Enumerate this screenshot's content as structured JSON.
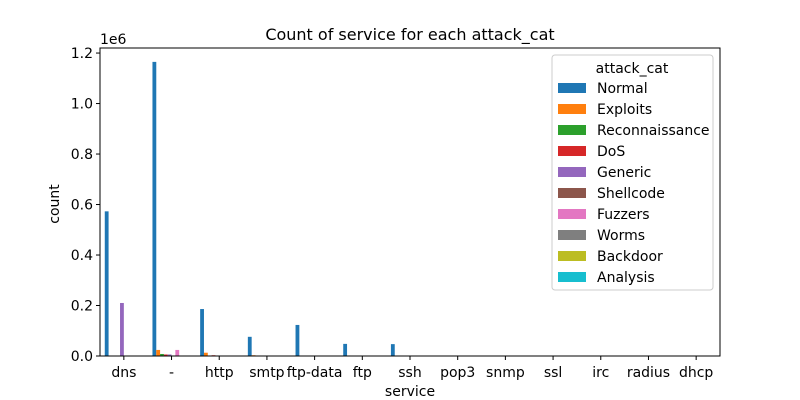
{
  "chart_data": {
    "type": "bar",
    "title": "Count of service for each attack_cat",
    "xlabel": "service",
    "ylabel": "count",
    "y_multiplier_label": "1e6",
    "ylim": [
      0,
      1.22
    ],
    "y_ticks": [
      "0.0",
      "0.2",
      "0.4",
      "0.6",
      "0.8",
      "1.0",
      "1.2"
    ],
    "grid": false,
    "legend_title": "attack_cat",
    "legend_position": "top-right",
    "categories": [
      "dns",
      "-",
      "http",
      "smtp",
      "ftp-data",
      "ftp",
      "ssh",
      "pop3",
      "snmp",
      "ssl",
      "irc",
      "radius",
      "dhcp"
    ],
    "series": [
      {
        "name": "Normal",
        "color": "#1f77b4",
        "values": [
          0.573,
          1.165,
          0.186,
          0.076,
          0.123,
          0.048,
          0.047,
          0.0,
          0.0,
          0.0,
          0.0,
          0.0,
          0.0
        ]
      },
      {
        "name": "Exploits",
        "color": "#ff7f0e",
        "values": [
          0.0,
          0.024,
          0.013,
          0.003,
          0.0,
          0.002,
          0.0,
          0.0,
          0.0,
          0.0,
          0.0,
          0.0,
          0.0
        ]
      },
      {
        "name": "Reconnaissance",
        "color": "#2ca02c",
        "values": [
          0.0,
          0.008,
          0.002,
          0.0,
          0.0,
          0.0,
          0.0,
          0.0,
          0.0,
          0.0,
          0.0,
          0.0,
          0.0
        ]
      },
      {
        "name": "DoS",
        "color": "#d62728",
        "values": [
          0.0,
          0.006,
          0.003,
          0.0,
          0.0,
          0.0,
          0.0,
          0.0,
          0.0,
          0.0,
          0.0,
          0.0,
          0.0
        ]
      },
      {
        "name": "Generic",
        "color": "#9467bd",
        "values": [
          0.21,
          0.006,
          0.0,
          0.0,
          0.0,
          0.0,
          0.0,
          0.0,
          0.0,
          0.0,
          0.0,
          0.0,
          0.0
        ]
      },
      {
        "name": "Shellcode",
        "color": "#8c564b",
        "values": [
          0.0,
          0.001,
          0.0,
          0.0,
          0.0,
          0.0,
          0.0,
          0.0,
          0.0,
          0.0,
          0.0,
          0.0,
          0.0
        ]
      },
      {
        "name": "Fuzzers",
        "color": "#e377c2",
        "values": [
          0.0,
          0.024,
          0.0,
          0.0,
          0.0,
          0.0,
          0.0,
          0.0,
          0.0,
          0.0,
          0.0,
          0.0,
          0.0
        ]
      },
      {
        "name": "Worms",
        "color": "#7f7f7f",
        "values": [
          0.0,
          0.0,
          0.0,
          0.0,
          0.0,
          0.0,
          0.0,
          0.0,
          0.0,
          0.0,
          0.0,
          0.0,
          0.0
        ]
      },
      {
        "name": "Backdoor",
        "color": "#bcbd22",
        "values": [
          0.0,
          0.002,
          0.0,
          0.0,
          0.0,
          0.0,
          0.0,
          0.0,
          0.0,
          0.0,
          0.0,
          0.0,
          0.0
        ]
      },
      {
        "name": "Analysis",
        "color": "#17becf",
        "values": [
          0.0,
          0.002,
          0.0,
          0.0,
          0.0,
          0.0,
          0.0,
          0.0,
          0.0,
          0.0,
          0.0,
          0.0,
          0.0
        ]
      }
    ]
  }
}
